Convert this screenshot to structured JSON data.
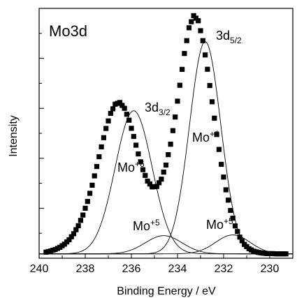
{
  "chart_data": {
    "type": "scatter",
    "panel_label": "Mo3d",
    "xlabel": "Binding Energy / eV",
    "ylabel": "Intensity",
    "xlim": [
      240,
      229
    ],
    "ylim": [
      0,
      1.03
    ],
    "x_reversed": true,
    "xticks": [
      "240",
      "238",
      "236",
      "234",
      "232",
      "230"
    ],
    "y_tick_labels_shown": false,
    "baseline": 0.018,
    "series": [],
    "measured": {
      "x": [
        239.7,
        239.5,
        239.3,
        239.1,
        238.9,
        238.7,
        238.5,
        238.3,
        238.1,
        237.9,
        237.7,
        237.5,
        237.3,
        237.1,
        236.9,
        236.7,
        236.5,
        236.3,
        236.1,
        235.9,
        235.7,
        235.5,
        235.3,
        235.1,
        234.9,
        234.7,
        234.5,
        234.3,
        234.1,
        233.9,
        233.7,
        233.5,
        233.3,
        233.1,
        232.9,
        232.7,
        232.5,
        232.3,
        232.1,
        231.9,
        231.7,
        231.5,
        231.3,
        231.1,
        230.9,
        230.7,
        230.5,
        230.3,
        230.1,
        229.9,
        229.7,
        229.5,
        229.3
      ],
      "y": [
        0.025,
        0.03,
        0.036,
        0.045,
        0.058,
        0.076,
        0.101,
        0.134,
        0.178,
        0.234,
        0.301,
        0.378,
        0.459,
        0.535,
        0.597,
        0.635,
        0.642,
        0.618,
        0.569,
        0.502,
        0.43,
        0.365,
        0.318,
        0.294,
        0.296,
        0.326,
        0.384,
        0.47,
        0.582,
        0.713,
        0.844,
        0.95,
        1.0,
        0.979,
        0.897,
        0.779,
        0.645,
        0.51,
        0.387,
        0.282,
        0.197,
        0.133,
        0.087,
        0.057,
        0.039,
        0.029,
        0.024,
        0.021,
        0.019,
        0.019,
        0.018,
        0.018,
        0.018
      ]
    },
    "components": [
      {
        "label": "3d3/2 Mo+6",
        "center": 235.9,
        "height": 0.59,
        "width": 0.8
      },
      {
        "label": "3d5/2 Mo+6",
        "center": 232.8,
        "height": 0.875,
        "width": 0.68
      },
      {
        "label": "3d3/2 Mo+5",
        "center": 234.6,
        "height": 0.075,
        "width": 0.8
      },
      {
        "label": "3d5/2 Mo+5",
        "center": 231.6,
        "height": 0.078,
        "width": 0.75
      }
    ],
    "annotations": [
      {
        "base": "Mo",
        "sup": "+6",
        "sub": ""
      },
      {
        "base": "Mo",
        "sup": "+6",
        "sub": ""
      },
      {
        "base": "Mo",
        "sup": "+5",
        "sub": ""
      },
      {
        "base": "Mo",
        "sup": "+5",
        "sub": ""
      },
      {
        "base": "3d",
        "sup": "",
        "sub": "3/2"
      },
      {
        "base": "3d",
        "sup": "",
        "sub": "5/2"
      }
    ],
    "colors": {
      "markers": "#000000",
      "lines": "#000000"
    }
  }
}
